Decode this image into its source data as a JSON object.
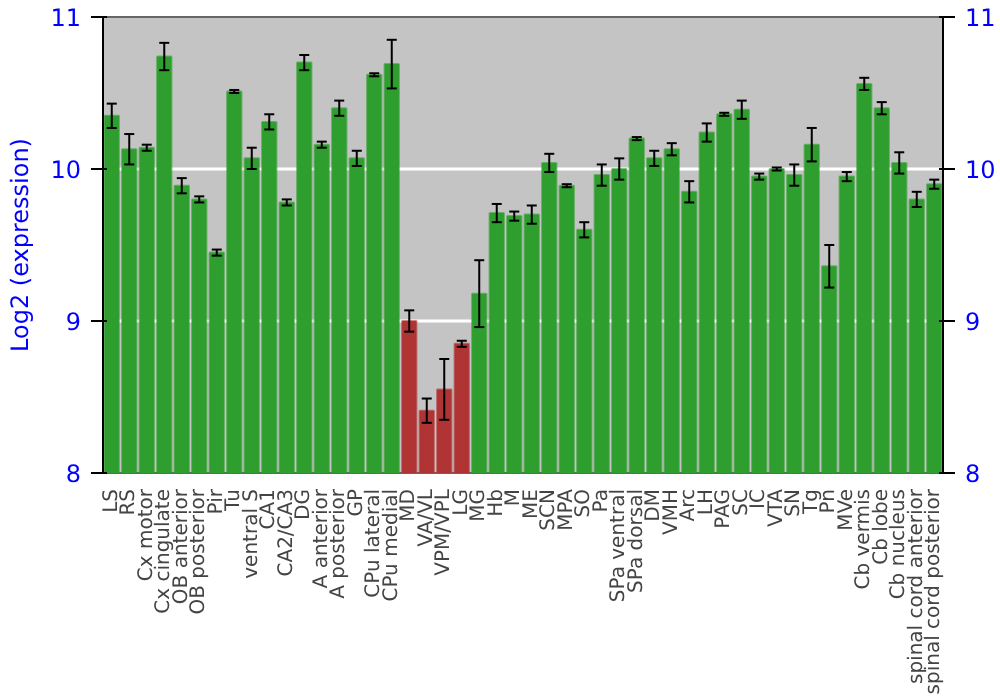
{
  "chart_data": {
    "type": "bar",
    "ylabel": "Log2 (expression)",
    "categories": [
      "LS",
      "RS",
      "Cx motor",
      "Cx cingulate",
      "OB anterior",
      "OB posterior",
      "Pir",
      "Tu",
      "ventral S",
      "CA1",
      "CA2/CA3",
      "DG",
      "A anterior",
      "A posterior",
      "GP",
      "CPu lateral",
      "CPu medial",
      "MD",
      "VA/VL",
      "VPM/VPL",
      "LG",
      "MG",
      "Hb",
      "M",
      "ME",
      "SCN",
      "MPA",
      "SO",
      "Pa",
      "SPa ventral",
      "SPa dorsal",
      "DM",
      "VMH",
      "Arc",
      "LH",
      "PAG",
      "SC",
      "IC",
      "VTA",
      "SN",
      "Tg",
      "Pn",
      "MVe",
      "Cb vermis",
      "Cb lobe",
      "Cb nucleus",
      "spinal cord anterior",
      "spinal cord posterior"
    ],
    "values": [
      10.35,
      10.13,
      10.14,
      10.74,
      9.89,
      9.8,
      9.45,
      10.51,
      10.07,
      10.31,
      9.78,
      10.7,
      10.16,
      10.4,
      10.07,
      10.62,
      10.69,
      9.0,
      8.41,
      8.55,
      8.85,
      9.18,
      9.71,
      9.69,
      9.7,
      10.04,
      9.89,
      9.6,
      9.96,
      10.0,
      10.2,
      10.07,
      10.13,
      9.85,
      10.24,
      10.36,
      10.39,
      9.95,
      10.0,
      9.96,
      10.16,
      9.36,
      9.95,
      10.56,
      10.4,
      10.04,
      9.8,
      9.9
    ],
    "errors": [
      0.08,
      0.1,
      0.02,
      0.09,
      0.05,
      0.02,
      0.02,
      0.01,
      0.07,
      0.05,
      0.02,
      0.05,
      0.02,
      0.05,
      0.05,
      0.01,
      0.16,
      0.07,
      0.08,
      0.2,
      0.02,
      0.22,
      0.06,
      0.03,
      0.06,
      0.06,
      0.01,
      0.05,
      0.07,
      0.07,
      0.01,
      0.05,
      0.04,
      0.07,
      0.06,
      0.01,
      0.06,
      0.02,
      0.01,
      0.07,
      0.11,
      0.14,
      0.03,
      0.04,
      0.04,
      0.07,
      0.05,
      0.03
    ],
    "colors": [
      "#2e9e2e",
      "#2e9e2e",
      "#2e9e2e",
      "#2e9e2e",
      "#2e9e2e",
      "#2e9e2e",
      "#2e9e2e",
      "#2e9e2e",
      "#2e9e2e",
      "#2e9e2e",
      "#2e9e2e",
      "#2e9e2e",
      "#2e9e2e",
      "#2e9e2e",
      "#2e9e2e",
      "#2e9e2e",
      "#2e9e2e",
      "#b03434",
      "#b03434",
      "#b03434",
      "#b03434",
      "#2e9e2e",
      "#2e9e2e",
      "#2e9e2e",
      "#2e9e2e",
      "#2e9e2e",
      "#2e9e2e",
      "#2e9e2e",
      "#2e9e2e",
      "#2e9e2e",
      "#2e9e2e",
      "#2e9e2e",
      "#2e9e2e",
      "#2e9e2e",
      "#2e9e2e",
      "#2e9e2e",
      "#2e9e2e",
      "#2e9e2e",
      "#2e9e2e",
      "#2e9e2e",
      "#2e9e2e",
      "#2e9e2e",
      "#2e9e2e",
      "#2e9e2e",
      "#2e9e2e",
      "#2e9e2e",
      "#2e9e2e",
      "#2e9e2e"
    ],
    "ylim": [
      8,
      11
    ],
    "yticks": [
      8,
      9,
      10,
      11
    ],
    "y2lim": [
      8,
      11
    ],
    "y2ticks": [
      8,
      9,
      10,
      11
    ],
    "grid": "y"
  }
}
